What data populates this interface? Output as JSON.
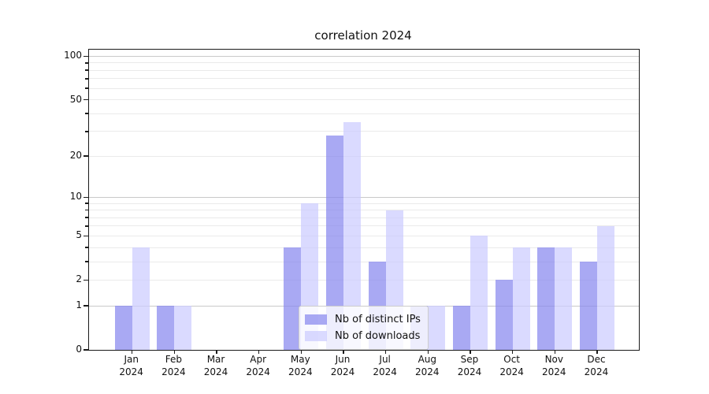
{
  "chart_data": {
    "type": "bar",
    "title": "correlation 2024",
    "categories": [
      "Jan",
      "Feb",
      "Mar",
      "Apr",
      "May",
      "Jun",
      "Jul",
      "Aug",
      "Sep",
      "Oct",
      "Nov",
      "Dec"
    ],
    "category_sublabel": "2024",
    "series": [
      {
        "name": "Nb of distinct IPs",
        "color": "#8888ee",
        "values": [
          1,
          1,
          0,
          0,
          4,
          28,
          3,
          1,
          1,
          2,
          4,
          3
        ]
      },
      {
        "name": "Nb of downloads",
        "color": "#ccccff",
        "values": [
          4,
          1,
          0,
          0,
          9,
          35,
          8,
          1,
          5,
          4,
          4,
          6
        ]
      }
    ],
    "bar_alpha": 0.72,
    "y_scale": "log10(value+1)",
    "ylim": [
      0,
      111
    ],
    "y_tick_labels": [
      0,
      1,
      2,
      5,
      10,
      20,
      50,
      100
    ],
    "y_gridlines_major": [
      1,
      10,
      100
    ],
    "y_gridlines_minor": [
      2,
      3,
      4,
      5,
      6,
      7,
      8,
      9,
      20,
      30,
      40,
      50,
      60,
      70,
      80,
      90
    ],
    "grid": true,
    "legend_position": "inside lower-center-left",
    "colors": {
      "grid_major": "#c9c9c9",
      "grid_minor": "#eaeaea",
      "spine": "#1a1a1a",
      "text": "#111111",
      "legend_border": "#cccccc",
      "legend_bg": "rgba(255,255,255,0.8)"
    }
  }
}
